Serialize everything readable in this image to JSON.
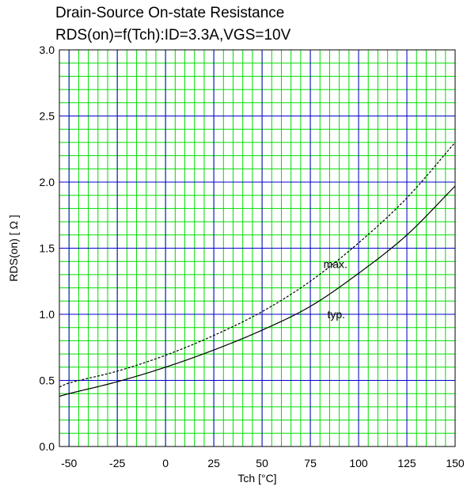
{
  "chart_data": {
    "type": "line",
    "title": "Drain-Source On-state Resistance",
    "subtitle": "RDS(on)=f(Tch):ID=3.3A,VGS=10V",
    "xlabel": "Tch [°C]",
    "ylabel": "RDS(on) [ Ω ]",
    "xlim": [
      -55,
      150
    ],
    "ylim": [
      0.0,
      3.0
    ],
    "x_ticks": [
      -50,
      -25,
      0,
      25,
      50,
      75,
      100,
      125,
      150
    ],
    "x_tick_labels": [
      "-50",
      "-25",
      "0",
      "25",
      "50",
      "75",
      "100",
      "125",
      "150"
    ],
    "y_ticks": [
      0.0,
      0.5,
      1.0,
      1.5,
      2.0,
      2.5,
      3.0
    ],
    "y_tick_labels": [
      "0.0",
      "0.5",
      "1.0",
      "1.5",
      "2.0",
      "2.5",
      "3.0"
    ],
    "grid": true,
    "minor_grid_x_step": 5,
    "minor_grid_y_step": 0.1,
    "series": [
      {
        "name": "typ.",
        "style": "solid",
        "x": [
          -55,
          -50,
          -25,
          0,
          25,
          50,
          75,
          100,
          125,
          150
        ],
        "y": [
          0.38,
          0.4,
          0.49,
          0.6,
          0.73,
          0.88,
          1.06,
          1.31,
          1.6,
          1.97
        ]
      },
      {
        "name": "max.",
        "style": "dashed",
        "x": [
          -55,
          -50,
          -25,
          0,
          25,
          50,
          75,
          100,
          125,
          150
        ],
        "y": [
          0.45,
          0.48,
          0.57,
          0.69,
          0.84,
          1.02,
          1.25,
          1.54,
          1.88,
          2.3
        ]
      }
    ],
    "colors": {
      "major_grid": "#0000cc",
      "minor_grid": "#00dd00",
      "curve": "#000000"
    }
  }
}
